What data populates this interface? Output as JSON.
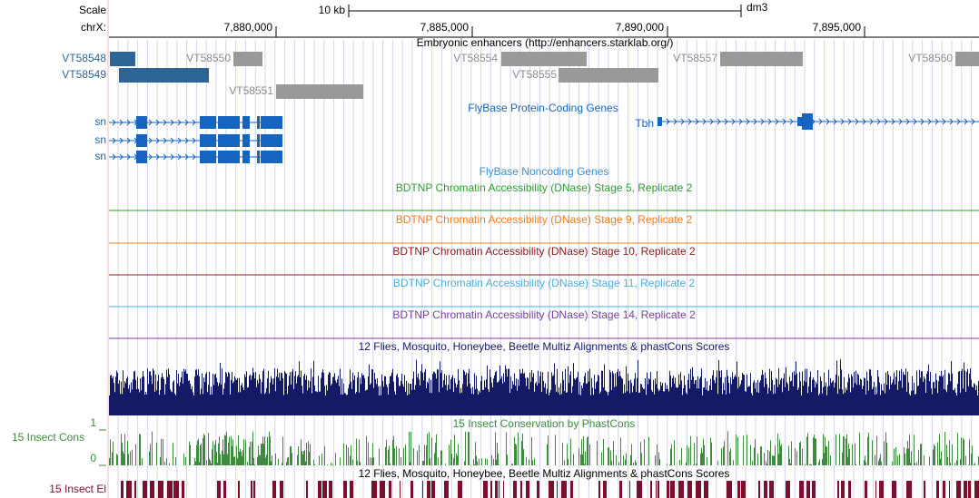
{
  "header": {
    "scale_label": "Scale",
    "chrom_label": "chrX:",
    "scale_bar": "10 kb",
    "assembly": "dm3"
  },
  "positions": [
    "7,880,000",
    "7,885,000",
    "7,890,000",
    "7,895,000"
  ],
  "tracks": {
    "enhancers": {
      "title": "Embryonic enhancers (http://enhancers.starklab.org/)",
      "items": [
        "VT58548",
        "VT58549",
        "VT58550",
        "VT58554",
        "VT58557",
        "VT58560",
        "VT58555",
        "VT58551"
      ]
    },
    "protein_coding": {
      "title": "FlyBase Protein-Coding Genes",
      "genes": [
        "sn",
        "sn",
        "sn",
        "Tbh"
      ]
    },
    "noncoding": {
      "title": "FlyBase Noncoding Genes"
    },
    "dnase": [
      "BDTNP Chromatin Accessibility (DNase) Stage 5, Replicate 2",
      "BDTNP Chromatin Accessibility (DNase) Stage 9, Replicate 2",
      "BDTNP Chromatin Accessibility (DNase) Stage 10, Replicate 2",
      "BDTNP Chromatin Accessibility (DNase) Stage 11, Replicate 2",
      "BDTNP Chromatin Accessibility (DNase) Stage 14, Replicate 2"
    ],
    "multiz": {
      "title": "12 Flies, Mosquito, Honeybee, Beetle Multiz Alignments & phastCons Scores"
    },
    "phastcons": {
      "title": "15 Insect Conservation by PhastCons",
      "side_label": "15 Insect Cons",
      "max_label": "1",
      "min_label": "0"
    },
    "elements": {
      "title": "12 Flies, Mosquito, Honeybee, Beetle Multiz Alignments & phastCons Scores",
      "side_label": "15 Insect El"
    }
  }
}
